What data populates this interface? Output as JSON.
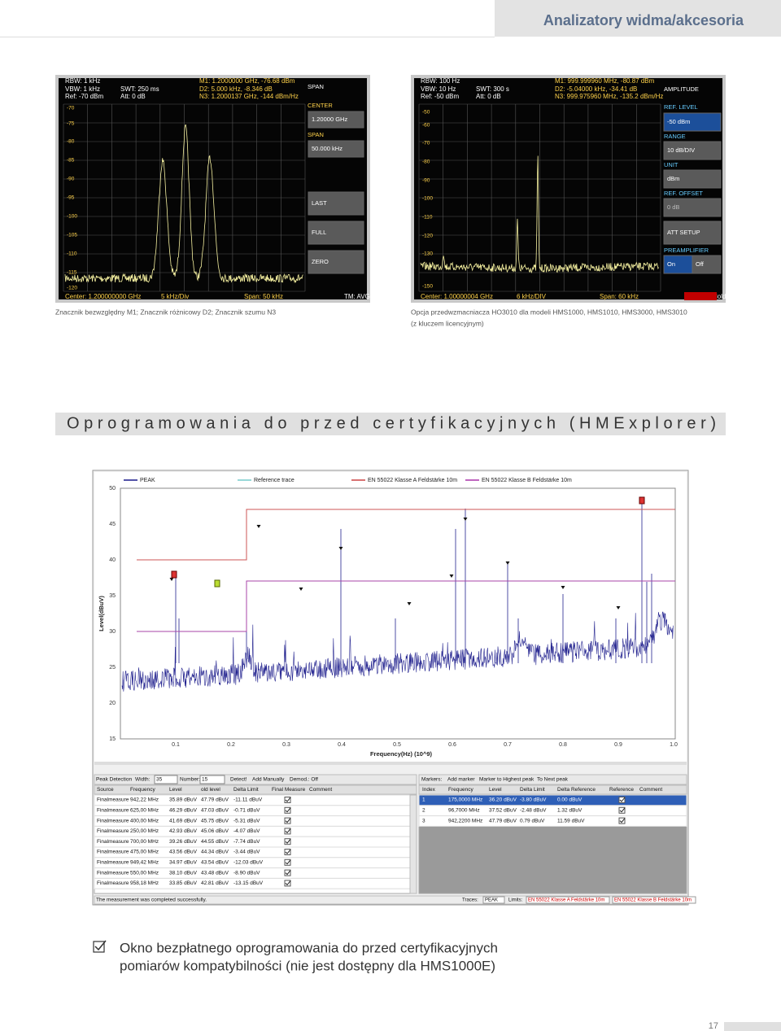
{
  "header": {
    "title": "Analizatory widma/akcesoria"
  },
  "screenshot_left": {
    "info": [
      "RBW: 1 kHz",
      "VBW: 1 kHz",
      "Ref: -70 dBm",
      "SWT: 250 ms",
      "Att: 0 dB",
      "M1: 1.2000000 GHz, -76.68 dBm",
      "D2: 5.000 kHz, -8.346 dB",
      "N3: 1.2000137 GHz, -144 dBm/Hz"
    ],
    "y_labels": [
      "-70",
      "-75",
      "-80",
      "-85",
      "-90",
      "-95",
      "-100",
      "-105",
      "-110",
      "-115",
      "-120"
    ],
    "footer": [
      "Center: 1.200000000 GHz",
      "5 kHz/Div",
      "Span: 50 kHz",
      "TM: AVG"
    ],
    "softkeys": [
      "SPAN",
      "CENTER",
      "1.20000 GHz",
      "SPAN",
      "50.000 kHz",
      "LAST",
      "FULL",
      "ZERO"
    ]
  },
  "caption_left": "Znacznik bezwzględny M1; Znacznik różnicowy D2; Znacznik szumu N3",
  "screenshot_right": {
    "info": [
      "RBW: 100 Hz",
      "VBW: 10 Hz",
      "Ref: -50 dBm",
      "SWT: 300 s",
      "Att: 0 dB",
      "M1: 999.999960 MHz, -80.87 dBm",
      "D2: -5.04000 kHz, -34.41 dB",
      "N3: 999.975960 MHz, -135.2 dBm/Hz"
    ],
    "y_labels": [
      "-50",
      "-60",
      "-70",
      "-80",
      "-90",
      "-100",
      "-110",
      "-120",
      "-130",
      "-150"
    ],
    "footer": [
      "Center: 1.00000004 GHz",
      "6 kHz/DIV",
      "Span: 60 kHz",
      "TM: Hold"
    ],
    "softkeys": [
      "AMPLITUDE",
      "REF. LEVEL",
      "-50 dBm",
      "RANGE",
      "10 dB/DIV",
      "UNIT",
      "dBm",
      "REF. OFFSET",
      "0 dB",
      "ATT SETUP",
      "PREAMPLIFIER",
      "On",
      "Off"
    ]
  },
  "caption_right": [
    "Opcja przedwzmacniacza HO3010 dla modeli HMS1000, HMS1010, HMS3000, HMS3010",
    "(z kluczem licencyjnym)"
  ],
  "section_title": "Oprogramowania do przed certyfikacyjnych (HMExplorer)",
  "hmexplorer": {
    "legend": [
      "PEAK",
      "Reference trace",
      "EN 55022 Klasse A Feldstärke 10m",
      "EN 55022 Klasse B Feldstärke 10m"
    ],
    "y_ticks": [
      "50",
      "45",
      "40",
      "35",
      "30",
      "25",
      "20",
      "15"
    ],
    "x_ticks": [
      "0.1",
      "0.2",
      "0.3",
      "0.4",
      "0.5",
      "0.6",
      "0.7",
      "0.8",
      "0.9",
      "1.0"
    ],
    "y_label": "Level(dBuV)",
    "x_label": "Frequency(Hz) (10^9)",
    "peak_toolbar": [
      "Peak Detection",
      "Width:",
      "35",
      "Number:",
      "15",
      "Detect!",
      "Add Manually",
      "Demod.: Off"
    ],
    "peak_columns": [
      "Source",
      "Frequency",
      "Level",
      "old level",
      "Delta Limit",
      "Final Measure",
      "Comment"
    ],
    "peak_rows": [
      [
        "Finalmeasure",
        "942,22 MHz",
        "35.89 dBuV",
        "47.79 dBuV",
        "-11.11 dBuV"
      ],
      [
        "Finalmeasure",
        "625,00 MHz",
        "46.29 dBuV",
        "47.03 dBuV",
        "-0.71 dBuV"
      ],
      [
        "Finalmeasure",
        "400,00 MHz",
        "41.69 dBuV",
        "45.75 dBuV",
        "-5.31 dBuV"
      ],
      [
        "Finalmeasure",
        "250,00 MHz",
        "42.93 dBuV",
        "45.06 dBuV",
        "-4.07 dBuV"
      ],
      [
        "Finalmeasure",
        "700,00 MHz",
        "39.26 dBuV",
        "44.55 dBuV",
        "-7.74 dBuV"
      ],
      [
        "Finalmeasure",
        "475,00 MHz",
        "43.56 dBuV",
        "44.34 dBuV",
        "-3.44 dBuV"
      ],
      [
        "Finalmeasure",
        "949,42 MHz",
        "34.97 dBuV",
        "43.54 dBuV",
        "-12.03 dBuV"
      ],
      [
        "Finalmeasure",
        "550,00 MHz",
        "38.10 dBuV",
        "43.48 dBuV",
        "-8.90 dBuV"
      ],
      [
        "Finalmeasure",
        "958,18 MHz",
        "33.85 dBuV",
        "42.81 dBuV",
        "-13.15 dBuV"
      ]
    ],
    "marker_toolbar": [
      "Markers:",
      "Add marker",
      "Marker to Highest peak",
      "To Next peak"
    ],
    "marker_columns": [
      "Index",
      "Frequency",
      "Level",
      "Delta Limit",
      "Delta Reference",
      "Reference",
      "Comment"
    ],
    "marker_rows": [
      [
        "1",
        "175,0000 MHz",
        "36.20 dBuV",
        "-3.80 dBuV",
        "0.00 dBuV"
      ],
      [
        "2",
        "96,7000 MHz",
        "37.52 dBuV",
        "-2.48 dBuV",
        "1.32 dBuV"
      ],
      [
        "3",
        "942,2200 MHz",
        "47.79 dBuV",
        "0.79 dBuV",
        "11.59 dBuV"
      ]
    ],
    "status": "The measurement was completed successfully.",
    "status_right": [
      "Traces:",
      "PEAK",
      "Limits:",
      "EN 55022 Klasse A Feldstärke 10m",
      "EN 55022 Klasse B Feldstärke 10m"
    ]
  },
  "note": [
    "Okno bezpłatnego oprogramowania do przed certyfikacyjnych",
    "pomiarów kompatybilności (nie jest dostępny dla HMS1000E)"
  ],
  "page_number": "17"
}
